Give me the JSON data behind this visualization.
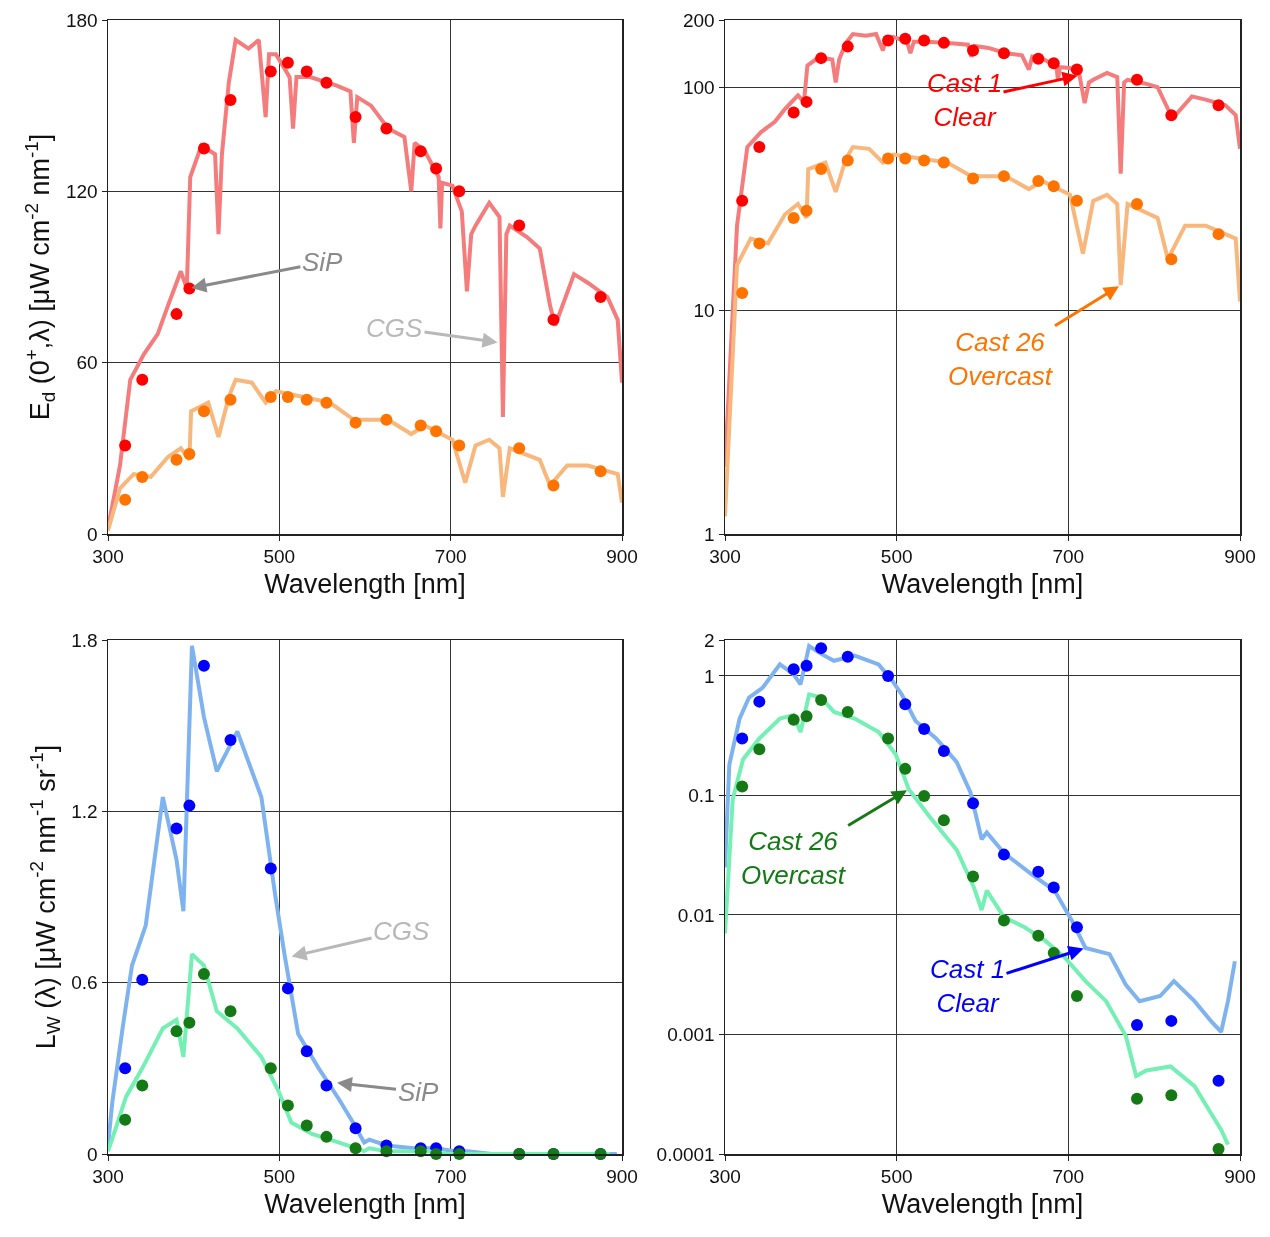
{
  "chart_data": [
    {
      "type": "line",
      "xlabel": "Wavelength [nm]",
      "ylabel": "E$_{d}$ (0$^{+}$,λ) [μW cm$^{-2}$ nm$^{-1}$]",
      "xlim": [
        300,
        900
      ],
      "xticks": [
        300,
        500,
        700,
        900
      ],
      "ylim": [
        0,
        180
      ],
      "yticks": [
        0,
        60,
        120,
        180
      ],
      "grid": true,
      "x": [
        320,
        340,
        380,
        395,
        412,
        443,
        490,
        510,
        532,
        555,
        589,
        625,
        665,
        683,
        710,
        780,
        820,
        875
      ],
      "series": [
        {
          "type": "line",
          "marker": "none",
          "color": "#f47c7c",
          "x": [
            300,
            314,
            326,
            342,
            358,
            370,
            385,
            392,
            396,
            409,
            425,
            429,
            433,
            441,
            449,
            464,
            476,
            484,
            488,
            496,
            512,
            516,
            520,
            536,
            567,
            583,
            587,
            591,
            607,
            627,
            646,
            654,
            658,
            670,
            686,
            688,
            690,
            702,
            713,
            719,
            724,
            729,
            745,
            757,
            761,
            765,
            769,
            789,
            804,
            816,
            822,
            844,
            860,
            883,
            895,
            900
          ],
          "values": [
            2,
            24,
            54,
            63,
            70,
            80,
            92,
            86,
            125,
            136,
            133,
            105,
            133,
            158,
            173,
            170,
            173,
            146,
            168,
            168,
            160,
            142,
            160,
            160,
            157,
            155,
            137,
            153,
            150,
            142,
            139,
            120,
            137,
            134,
            125,
            107,
            123,
            122,
            113,
            85,
            105,
            108,
            116,
            111,
            41,
            105,
            108,
            104,
            100,
            80,
            73,
            91,
            88,
            83,
            75,
            53
          ]
        },
        {
          "type": "scatter",
          "marker": "circle",
          "color": "#ff0000",
          "values": [
            31,
            54,
            77,
            86,
            135,
            152,
            162,
            165,
            162,
            158,
            146,
            142,
            134,
            128,
            120,
            108,
            75,
            83
          ]
        },
        {
          "type": "line",
          "marker": "none",
          "color": "#f8b77c",
          "x": [
            300,
            314,
            330,
            350,
            370,
            385,
            395,
            397,
            417,
            429,
            441,
            449,
            468,
            484,
            496,
            528,
            559,
            587,
            627,
            654,
            670,
            702,
            717,
            729,
            745,
            757,
            761,
            769,
            804,
            816,
            836,
            860,
            883,
            895,
            900
          ],
          "values": [
            1.2,
            16,
            21,
            20,
            27,
            30,
            26,
            43,
            46,
            34,
            48,
            54,
            53,
            46,
            50,
            48,
            46,
            40,
            40,
            35,
            38,
            33,
            18,
            31,
            33,
            30,
            13,
            30,
            26,
            17,
            24,
            24,
            22,
            21,
            11
          ]
        },
        {
          "type": "scatter",
          "marker": "circle",
          "color": "#ff7400",
          "values": [
            12,
            20,
            26,
            28,
            43,
            47,
            48,
            48,
            47,
            46,
            39,
            40,
            38,
            36,
            31,
            30,
            17,
            22
          ]
        }
      ],
      "annotations": [
        {
          "text": "SiP",
          "x": 395,
          "y": 86
        },
        {
          "text": "CGS",
          "x": 757,
          "y": 67
        }
      ]
    },
    {
      "type": "line",
      "xlabel": "Wavelength [nm]",
      "xlim": [
        300,
        900
      ],
      "xticks": [
        300,
        500,
        700,
        900
      ],
      "ylim": [
        1,
        200
      ],
      "yticks": [
        1,
        10,
        100,
        200
      ],
      "log": "y",
      "grid": true,
      "x": [
        320,
        340,
        380,
        395,
        412,
        443,
        490,
        510,
        532,
        555,
        589,
        625,
        665,
        683,
        710,
        780,
        820,
        875
      ],
      "series": [
        {
          "type": "line",
          "marker": "none",
          "color": "#f47c7c",
          "x": [
            300,
            314,
            326,
            342,
            358,
            370,
            385,
            392,
            396,
            409,
            425,
            429,
            433,
            441,
            449,
            464,
            476,
            484,
            488,
            496,
            512,
            516,
            520,
            536,
            567,
            583,
            587,
            591,
            607,
            627,
            646,
            654,
            658,
            670,
            686,
            688,
            690,
            702,
            713,
            719,
            724,
            729,
            745,
            757,
            761,
            765,
            769,
            789,
            804,
            816,
            822,
            844,
            860,
            883,
            895,
            900
          ],
          "values": [
            2,
            24,
            54,
            63,
            70,
            80,
            92,
            86,
            125,
            136,
            133,
            105,
            133,
            158,
            173,
            170,
            173,
            146,
            168,
            168,
            160,
            142,
            160,
            160,
            157,
            155,
            137,
            153,
            150,
            142,
            139,
            120,
            137,
            134,
            125,
            107,
            123,
            122,
            113,
            85,
            105,
            108,
            116,
            111,
            41,
            105,
            108,
            104,
            100,
            80,
            73,
            91,
            88,
            83,
            75,
            53
          ]
        },
        {
          "type": "scatter",
          "marker": "circle",
          "color": "#ff0000",
          "values": [
            31,
            54,
            77,
            86,
            135,
            152,
            162,
            165,
            162,
            158,
            146,
            142,
            134,
            128,
            120,
            108,
            75,
            83
          ]
        },
        {
          "type": "line",
          "marker": "none",
          "color": "#f8b77c",
          "x": [
            300,
            314,
            330,
            350,
            370,
            385,
            395,
            397,
            417,
            429,
            441,
            449,
            468,
            484,
            496,
            528,
            559,
            587,
            627,
            654,
            670,
            702,
            717,
            729,
            745,
            757,
            761,
            769,
            804,
            816,
            836,
            860,
            883,
            895,
            900
          ],
          "values": [
            1.2,
            16,
            21,
            20,
            27,
            30,
            26,
            43,
            46,
            34,
            48,
            54,
            53,
            46,
            50,
            48,
            46,
            40,
            40,
            35,
            38,
            33,
            18,
            31,
            33,
            30,
            13,
            30,
            26,
            17,
            24,
            24,
            22,
            21,
            11
          ]
        },
        {
          "type": "scatter",
          "marker": "circle",
          "color": "#ff7400",
          "values": [
            12,
            20,
            26,
            28,
            43,
            47,
            48,
            48,
            47,
            46,
            39,
            40,
            38,
            36,
            31,
            30,
            17,
            22
          ]
        }
      ],
      "annotations": [
        {
          "text": "Cast 1\nClear",
          "x": 713,
          "y": 113
        },
        {
          "text": "Cast 26\nOvercast",
          "x": 761,
          "y": 13
        }
      ]
    },
    {
      "type": "line",
      "xlabel": "Wavelength [nm]",
      "ylabel": "L$_{W}$ (λ) [μW cm$^{-2}$ nm$^{-1}$ sr$^{-1}$]",
      "xlim": [
        300,
        900
      ],
      "xticks": [
        300,
        500,
        700,
        900
      ],
      "ylim": [
        0,
        1.8
      ],
      "yticks": [
        0,
        0.6,
        1.2,
        1.8
      ],
      "grid": true,
      "x": [
        320,
        340,
        380,
        395,
        412,
        443,
        490,
        510,
        532,
        555,
        589,
        625,
        665,
        683,
        710,
        780,
        820,
        875
      ],
      "series": [
        {
          "type": "line",
          "marker": "none",
          "color": "#7fb3ef",
          "x": [
            300,
            305,
            317,
            328,
            344,
            364,
            380,
            388,
            398,
            412,
            427,
            451,
            479,
            495,
            506,
            522,
            546,
            570,
            586,
            599,
            605,
            625,
            657,
            684,
            704,
            720,
            748,
            767,
            783,
            807,
            823,
            847,
            866,
            878,
            886,
            894
          ],
          "values": [
            0.03,
            0.18,
            0.44,
            0.66,
            0.8,
            1.25,
            1.03,
            0.85,
            1.78,
            1.53,
            1.34,
            1.48,
            1.25,
            0.91,
            0.7,
            0.42,
            0.3,
            0.19,
            0.11,
            0.04,
            0.05,
            0.03,
            0.02,
            0.02,
            0.01,
            0.01,
            0,
            0,
            0,
            0,
            0,
            0,
            0,
            0,
            0,
            0
          ]
        },
        {
          "type": "scatter",
          "marker": "circle",
          "color": "#0000ff",
          "values": [
            0.3,
            0.61,
            1.14,
            1.22,
            1.71,
            1.45,
            1.0,
            0.58,
            0.36,
            0.24,
            0.09,
            0.03,
            0.02,
            0.02,
            0.01,
            0,
            0,
            0
          ]
        },
        {
          "type": "line",
          "marker": "none",
          "color": "#74f0b4",
          "x": [
            300,
            309,
            321,
            340,
            364,
            380,
            388,
            398,
            412,
            427,
            451,
            479,
            499,
            514,
            538,
            570,
            590,
            599,
            605,
            625,
            649,
            673,
            696,
            720,
            744,
            767,
            779,
            791,
            819,
            847,
            866,
            878,
            886
          ],
          "values": [
            0.01,
            0.09,
            0.2,
            0.3,
            0.44,
            0.47,
            0.34,
            0.7,
            0.66,
            0.5,
            0.44,
            0.34,
            0.22,
            0.11,
            0.07,
            0.04,
            0.02,
            0.01,
            0.02,
            0.01,
            0.01,
            0.01,
            0,
            0,
            0,
            0,
            0,
            0,
            0,
            0,
            0,
            0,
            0
          ]
        },
        {
          "type": "scatter",
          "marker": "circle",
          "color": "#157a15",
          "values": [
            0.12,
            0.24,
            0.43,
            0.46,
            0.63,
            0.5,
            0.3,
            0.17,
            0.1,
            0.06,
            0.02,
            0.01,
            0.01,
            0,
            0,
            0,
            0,
            0
          ]
        }
      ],
      "annotations": [
        {
          "text": "CGS",
          "x": 512,
          "y": 0.69
        },
        {
          "text": "SiP",
          "x": 565,
          "y": 0.25
        }
      ]
    },
    {
      "type": "line",
      "xlabel": "Wavelength [nm]",
      "xlim": [
        300,
        900
      ],
      "xticks": [
        300,
        500,
        700,
        900
      ],
      "ylim": [
        0.0001,
        2
      ],
      "yticks": [
        0.0001,
        0.001,
        0.01,
        0.1,
        1,
        2
      ],
      "log": "y",
      "grid": true,
      "x": [
        320,
        340,
        380,
        395,
        412,
        443,
        490,
        510,
        532,
        555,
        589,
        625,
        665,
        683,
        710,
        780,
        820,
        875
      ],
      "series": [
        {
          "type": "line",
          "marker": "none",
          "color": "#7fb3ef",
          "x": [
            300,
            305,
            317,
            328,
            344,
            364,
            380,
            388,
            398,
            412,
            427,
            451,
            479,
            495,
            506,
            522,
            546,
            570,
            586,
            599,
            605,
            625,
            657,
            684,
            704,
            720,
            748,
            767,
            783,
            807,
            823,
            847,
            866,
            878,
            886,
            894
          ],
          "values": [
            0.025,
            0.18,
            0.44,
            0.66,
            0.8,
            1.25,
            1.03,
            0.85,
            1.78,
            1.53,
            1.34,
            1.48,
            1.25,
            0.91,
            0.7,
            0.42,
            0.3,
            0.19,
            0.106,
            0.043,
            0.049,
            0.033,
            0.022,
            0.016,
            0.009,
            0.0053,
            0.0047,
            0.0026,
            0.0019,
            0.0021,
            0.0028,
            0.0019,
            0.0013,
            0.00105,
            0.0019,
            0.0041
          ]
        },
        {
          "type": "scatter",
          "marker": "circle",
          "color": "#0000ff",
          "values": [
            0.3,
            0.61,
            1.14,
            1.22,
            1.71,
            1.45,
            1.0,
            0.58,
            0.36,
            0.236,
            0.086,
            0.032,
            0.023,
            0.017,
            0.0079,
            0.0012,
            0.0013,
            0.00041
          ]
        },
        {
          "type": "line",
          "marker": "none",
          "color": "#74f0b4",
          "x": [
            300,
            309,
            321,
            340,
            364,
            380,
            388,
            398,
            412,
            427,
            451,
            479,
            499,
            514,
            538,
            570,
            590,
            599,
            605,
            625,
            649,
            673,
            696,
            720,
            744,
            767,
            779,
            791,
            819,
            847,
            866,
            878,
            886
          ],
          "values": [
            0.007,
            0.093,
            0.2,
            0.3,
            0.44,
            0.47,
            0.34,
            0.7,
            0.66,
            0.5,
            0.44,
            0.34,
            0.22,
            0.113,
            0.067,
            0.035,
            0.017,
            0.011,
            0.016,
            0.0096,
            0.0079,
            0.0061,
            0.0044,
            0.0028,
            0.0019,
            0.00097,
            0.00045,
            0.0005,
            0.00054,
            0.00037,
            0.00022,
            0.00016,
            0.00012
          ]
        },
        {
          "type": "scatter",
          "marker": "circle",
          "color": "#157a15",
          "values": [
            0.119,
            0.244,
            0.43,
            0.46,
            0.63,
            0.5,
            0.3,
            0.167,
            0.099,
            0.062,
            0.021,
            0.009,
            0.0067,
            0.0048,
            0.0021,
            0.00029,
            0.00031,
            0.00011
          ]
        }
      ],
      "annotations": [
        {
          "text": "Cast 26\nOvercast",
          "x": 514,
          "y": 0.113
        },
        {
          "text": "Cast 1\nClear",
          "x": 720,
          "y": 0.0053
        }
      ]
    }
  ]
}
